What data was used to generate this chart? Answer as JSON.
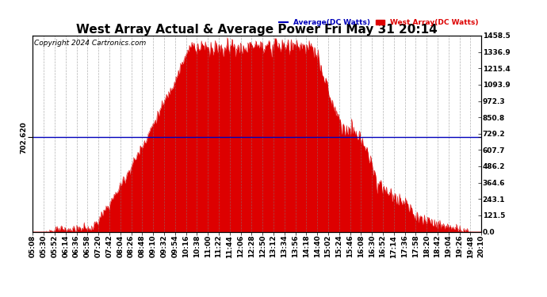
{
  "title": "West Array Actual & Average Power Fri May 31 20:14",
  "copyright": "Copyright 2024 Cartronics.com",
  "legend_average": "Average(DC Watts)",
  "legend_west": "West Array(DC Watts)",
  "average_value": 702.62,
  "ymax": 1458.5,
  "ymin": 0.0,
  "yticks_right": [
    0.0,
    121.5,
    243.1,
    364.6,
    486.2,
    607.7,
    729.2,
    850.8,
    972.3,
    1093.9,
    1215.4,
    1336.9,
    1458.5
  ],
  "ytick_labels_right": [
    "0.0",
    "121.5",
    "243.1",
    "364.6",
    "486.2",
    "607.7",
    "729.2",
    "850.8",
    "972.3",
    "1093.9",
    "1215.4",
    "1336.9",
    "1458.5"
  ],
  "left_ylabel": "702.620",
  "background_color": "#ffffff",
  "fill_color": "#dd0000",
  "line_color": "#dd0000",
  "avg_line_color": "#0000bb",
  "title_fontsize": 11,
  "copyright_fontsize": 6.5,
  "tick_fontsize": 6.5,
  "xtick_labels": [
    "05:08",
    "05:30",
    "05:52",
    "06:14",
    "06:36",
    "06:58",
    "07:20",
    "07:42",
    "08:04",
    "08:26",
    "08:48",
    "09:10",
    "09:32",
    "09:54",
    "10:16",
    "10:38",
    "11:00",
    "11:22",
    "11:44",
    "12:06",
    "12:28",
    "12:50",
    "13:12",
    "13:34",
    "13:56",
    "14:18",
    "14:40",
    "15:02",
    "15:24",
    "15:46",
    "16:08",
    "16:30",
    "16:52",
    "17:14",
    "17:36",
    "17:58",
    "18:20",
    "18:42",
    "19:04",
    "19:26",
    "19:48",
    "20:10"
  ]
}
